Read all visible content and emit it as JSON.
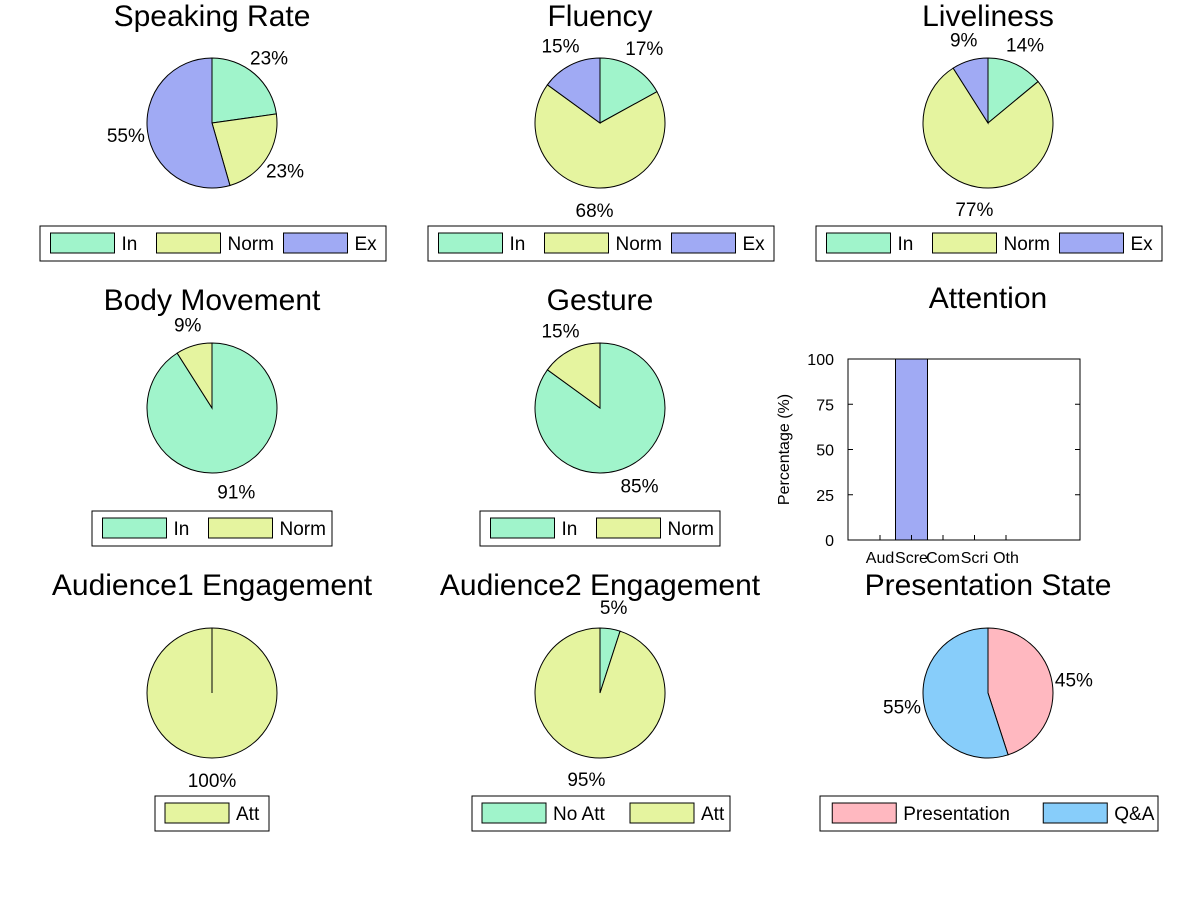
{
  "colors": {
    "In": "#a0f4cb",
    "Norm": "#e5f49f",
    "Ex": "#a0aaf4",
    "NoAtt": "#a0f4cb",
    "Att": "#e5f49f",
    "Presentation": "#ffb8c0",
    "QA": "#87cdfa"
  },
  "chart_data": [
    {
      "type": "pie",
      "title": "Speaking Rate",
      "slices": [
        {
          "label": "In",
          "value": 23,
          "pct_label": "23%",
          "color": "#a0f4cb"
        },
        {
          "label": "Norm",
          "value": 23,
          "pct_label": "23%",
          "color": "#e5f49f"
        },
        {
          "label": "Ex",
          "value": 55,
          "pct_label": "55%",
          "color": "#a0aaf4"
        }
      ],
      "legend": [
        "In",
        "Norm",
        "Ex"
      ],
      "legend_placement": "bottom"
    },
    {
      "type": "pie",
      "title": "Fluency",
      "slices": [
        {
          "label": "In",
          "value": 17,
          "pct_label": "17%",
          "color": "#a0f4cb"
        },
        {
          "label": "Norm",
          "value": 68,
          "pct_label": "68%",
          "color": "#e5f49f"
        },
        {
          "label": "Ex",
          "value": 15,
          "pct_label": "15%",
          "color": "#a0aaf4"
        }
      ],
      "legend": [
        "In",
        "Norm",
        "Ex"
      ],
      "legend_placement": "bottom"
    },
    {
      "type": "pie",
      "title": "Liveliness",
      "slices": [
        {
          "label": "In",
          "value": 14,
          "pct_label": "14%",
          "color": "#a0f4cb"
        },
        {
          "label": "Norm",
          "value": 77,
          "pct_label": "77%",
          "color": "#e5f49f"
        },
        {
          "label": "Ex",
          "value": 9,
          "pct_label": "9%",
          "color": "#a0aaf4"
        }
      ],
      "legend": [
        "In",
        "Norm",
        "Ex"
      ],
      "legend_placement": "bottom"
    },
    {
      "type": "pie",
      "title": "Body Movement",
      "slices": [
        {
          "label": "In",
          "value": 91,
          "pct_label": "91%",
          "color": "#a0f4cb"
        },
        {
          "label": "Norm",
          "value": 9,
          "pct_label": "9%",
          "color": "#e5f49f"
        }
      ],
      "legend": [
        "In",
        "Norm"
      ],
      "legend_placement": "bottom"
    },
    {
      "type": "pie",
      "title": "Gesture",
      "slices": [
        {
          "label": "In",
          "value": 85,
          "pct_label": "85%",
          "color": "#a0f4cb"
        },
        {
          "label": "Norm",
          "value": 15,
          "pct_label": "15%",
          "color": "#e5f49f"
        }
      ],
      "legend": [
        "In",
        "Norm"
      ],
      "legend_placement": "bottom"
    },
    {
      "type": "bar",
      "title": "Attention",
      "categories": [
        "Aud",
        "Scre",
        "Com",
        "Scri",
        "Oth"
      ],
      "values": [
        0,
        100,
        0,
        0,
        0
      ],
      "ylabel": "Percentage (%)",
      "ylim": [
        0,
        100
      ],
      "yticks": [
        0,
        25,
        50,
        75,
        100
      ],
      "color": "#a0aaf4"
    },
    {
      "type": "pie",
      "title": "Audience1 Engagement",
      "slices": [
        {
          "label": "Att",
          "value": 100,
          "pct_label": "100%",
          "color": "#e5f49f"
        }
      ],
      "legend": [
        "Att"
      ],
      "legend_placement": "bottom"
    },
    {
      "type": "pie",
      "title": "Audience2 Engagement",
      "slices": [
        {
          "label": "No Att",
          "value": 5,
          "pct_label": "5%",
          "color": "#a0f4cb"
        },
        {
          "label": "Att",
          "value": 95,
          "pct_label": "95%",
          "color": "#e5f49f"
        }
      ],
      "legend": [
        "No Att",
        "Att"
      ],
      "legend_placement": "bottom"
    },
    {
      "type": "pie",
      "title": "Presentation State",
      "slices": [
        {
          "label": "Presentation",
          "value": 45,
          "pct_label": "45%",
          "color": "#ffb8c0"
        },
        {
          "label": "Q&A",
          "value": 55,
          "pct_label": "55%",
          "color": "#87cdfa"
        }
      ],
      "legend": [
        "Presentation",
        "Q&A"
      ],
      "legend_placement": "bottom"
    }
  ]
}
